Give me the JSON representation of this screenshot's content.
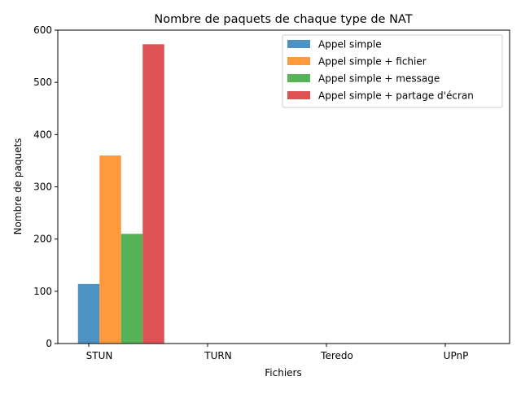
{
  "chart_data": {
    "type": "bar",
    "title": "Nombre de paquets de chaque type de NAT",
    "xlabel": "Fichiers",
    "ylabel": "Nombre de paquets",
    "categories": [
      "STUN",
      "TURN",
      "Teredo",
      "UPnP"
    ],
    "ylim": [
      0,
      600
    ],
    "yticks": [
      0,
      100,
      200,
      300,
      400,
      500,
      600
    ],
    "legend_position": "top-right",
    "grid": false,
    "series": [
      {
        "name": "Appel simple",
        "color": "#1f77b4",
        "values": [
          114,
          0,
          0,
          0
        ]
      },
      {
        "name": "Appel simple + fichier",
        "color": "#ff7f0e",
        "values": [
          360,
          0,
          0,
          0
        ]
      },
      {
        "name": "Appel simple + message",
        "color": "#2ca02c",
        "values": [
          210,
          0,
          0,
          0
        ]
      },
      {
        "name": "Appel simple + partage d'écran",
        "color": "#d62728",
        "values": [
          573,
          0,
          0,
          0
        ]
      }
    ]
  }
}
